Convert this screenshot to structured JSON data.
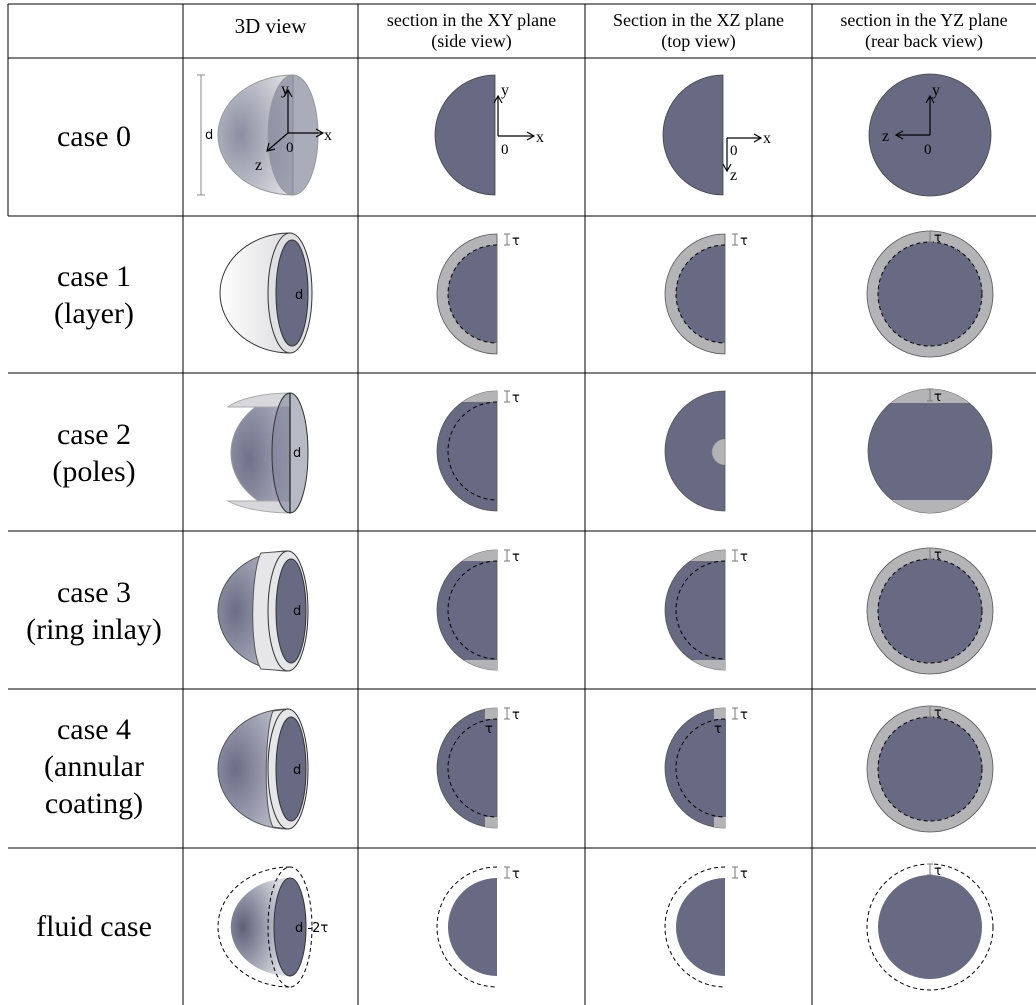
{
  "header": {
    "col_3d": "3D view",
    "col_xy": [
      "section in the XY plane",
      "(side view)"
    ],
    "col_xz": [
      "Section in the XZ plane",
      "(top view)"
    ],
    "col_yz": [
      "section in the YZ plane",
      "(rear back view)"
    ]
  },
  "rows": [
    {
      "label": [
        "case 0"
      ]
    },
    {
      "label": [
        "case 1",
        "(layer)"
      ]
    },
    {
      "label": [
        "case 2",
        "(poles)"
      ]
    },
    {
      "label": [
        "case 3",
        "(ring inlay)"
      ]
    },
    {
      "label": [
        "case 4",
        "(annular",
        "coating)"
      ]
    },
    {
      "label": [
        "fluid case"
      ]
    }
  ],
  "annotations": {
    "diameter": "d",
    "thickness": "τ",
    "fluid_diameter": "d -2τ",
    "axis_x": "x",
    "axis_y": "y",
    "axis_z": "z",
    "origin": "0"
  },
  "colors": {
    "core": "#676a82",
    "coating": "#b4b4b6",
    "light_shell": "#e6e6e8",
    "grid": "#000000"
  }
}
